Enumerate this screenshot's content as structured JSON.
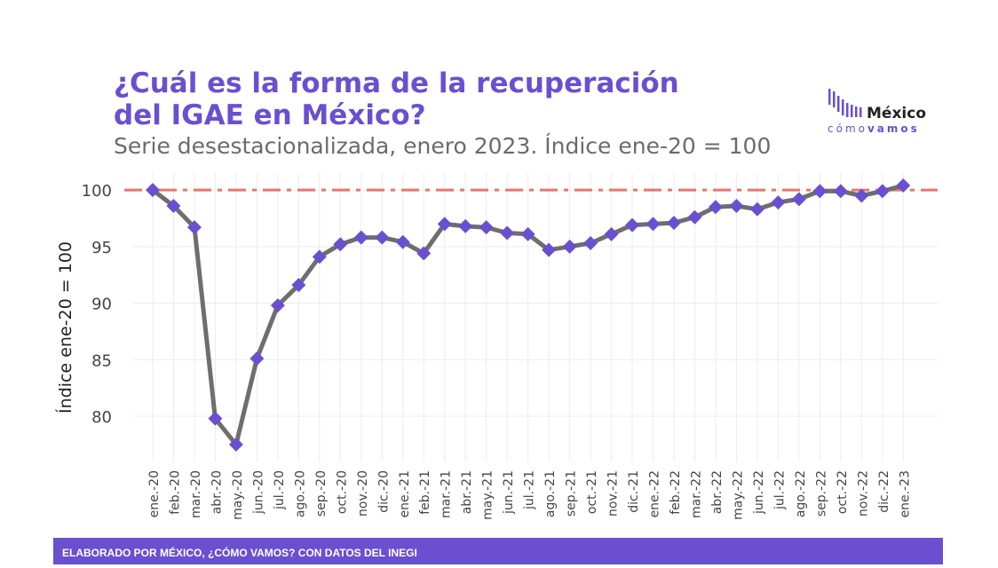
{
  "header": {
    "title": "¿Cuál es la forma de la recuperación\ndel IGAE en México?",
    "subtitle": "Serie desestacionalizada, enero 2023. Índice ene-20 = 100"
  },
  "logo": {
    "word1": "México",
    "word2a": "cómo",
    "word2b": "vamos",
    "bar_color": "#6a4fd0"
  },
  "footer": {
    "text": "ELABORADO POR MÉXICO, ¿CÓMO VAMOS? CON DATOS DEL INEGI"
  },
  "colors": {
    "line": "#6e6e6e",
    "marker": "#6a4fd0",
    "reference": "#e8756a",
    "grid": "#ececec"
  },
  "chart_data": {
    "type": "line",
    "title": "¿Cuál es la forma de la recuperación del IGAE en México?",
    "subtitle": "Serie desestacionalizada, enero 2023. Índice ene-20 = 100",
    "xlabel": "",
    "ylabel": "Índice ene-20 = 100",
    "ylim": [
      76,
      101.5
    ],
    "yticks": [
      80,
      85,
      90,
      95,
      100
    ],
    "grid": true,
    "reference_line": {
      "y": 100,
      "style": "dash-dot"
    },
    "categories": [
      "ene.-20",
      "feb.-20",
      "mar.-20",
      "abr.-20",
      "may.-20",
      "jun.-20",
      "jul.-20",
      "ago.-20",
      "sep.-20",
      "oct.-20",
      "nov.-20",
      "dic.-20",
      "ene.-21",
      "feb.-21",
      "mar.-21",
      "abr.-21",
      "may.-21",
      "jun.-21",
      "jul.-21",
      "ago.-21",
      "sep.-21",
      "oct.-21",
      "nov.-21",
      "dic.-21",
      "ene.-22",
      "feb.-22",
      "mar.-22",
      "abr.-22",
      "may.-22",
      "jun.-22",
      "jul.-22",
      "ago.-22",
      "sep.-22",
      "oct.-22",
      "nov.-22",
      "dic.-22",
      "ene.-23"
    ],
    "series": [
      {
        "values": [
          100,
          98.6,
          96.7,
          79.8,
          77.5,
          85.1,
          89.8,
          91.6,
          94.1,
          95.2,
          95.8,
          95.8,
          95.4,
          94.4,
          97.0,
          96.8,
          96.7,
          96.2,
          96.1,
          94.7,
          95.0,
          95.3,
          96.1,
          96.9,
          97.0,
          97.1,
          97.6,
          98.5,
          98.6,
          98.3,
          98.9,
          99.2,
          99.9,
          99.9,
          99.5,
          99.9,
          100.4
        ]
      }
    ]
  }
}
